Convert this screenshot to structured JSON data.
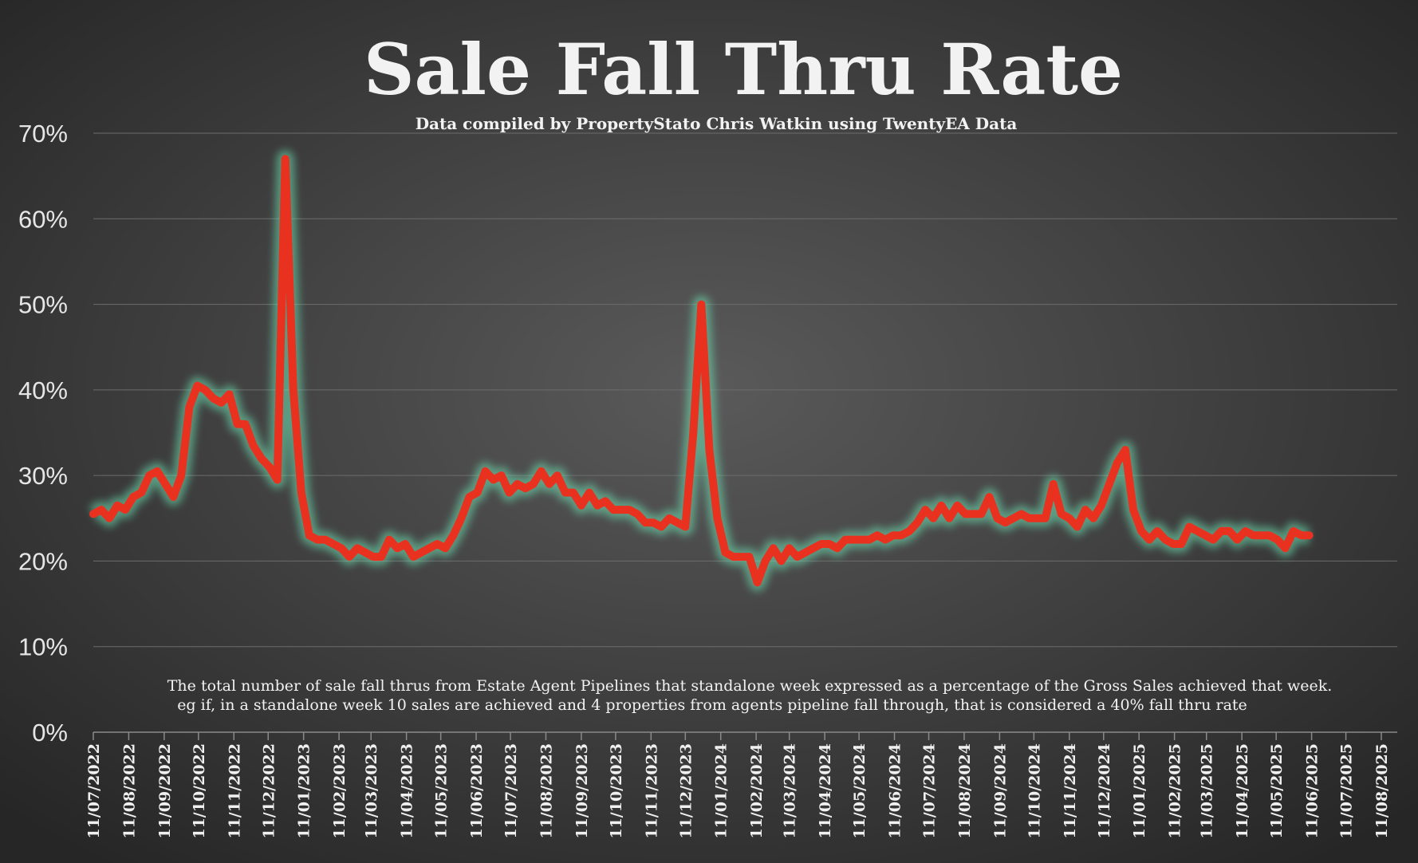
{
  "chart_data": {
    "type": "line",
    "title": "Sale Fall Thru Rate",
    "subtitle": "Data compiled by PropertyStato Chris Watkin using TwentyEA Data",
    "annotation": [
      "The total number of sale fall thrus from Estate Agent Pipelines that standalone week expressed as a percentage of the Gross Sales achieved that week.",
      "eg if, in a standalone week 10 sales are achieved and 4 properties from agents pipeline fall through, that is considered a 40%  fall thru rate"
    ],
    "x": [
      "2022-07-11",
      "2022-07-18",
      "2022-07-25",
      "2022-08-01",
      "2022-08-08",
      "2022-08-15",
      "2022-08-22",
      "2022-08-29",
      "2022-09-05",
      "2022-09-12",
      "2022-09-19",
      "2022-09-26",
      "2022-10-03",
      "2022-10-10",
      "2022-10-17",
      "2022-10-24",
      "2022-10-31",
      "2022-11-07",
      "2022-11-14",
      "2022-11-21",
      "2022-11-28",
      "2022-12-05",
      "2022-12-12",
      "2022-12-19",
      "2022-12-26",
      "2023-01-02",
      "2023-01-09",
      "2023-01-16",
      "2023-01-23",
      "2023-01-30",
      "2023-02-06",
      "2023-02-13",
      "2023-02-20",
      "2023-02-27",
      "2023-03-06",
      "2023-03-13",
      "2023-03-20",
      "2023-03-27",
      "2023-04-03",
      "2023-04-10",
      "2023-04-17",
      "2023-04-24",
      "2023-05-01",
      "2023-05-08",
      "2023-05-15",
      "2023-05-22",
      "2023-05-29",
      "2023-06-05",
      "2023-06-12",
      "2023-06-19",
      "2023-06-26",
      "2023-07-03",
      "2023-07-10",
      "2023-07-17",
      "2023-07-24",
      "2023-07-31",
      "2023-08-07",
      "2023-08-14",
      "2023-08-21",
      "2023-08-28",
      "2023-09-04",
      "2023-09-11",
      "2023-09-18",
      "2023-09-25",
      "2023-10-02",
      "2023-10-09",
      "2023-10-16",
      "2023-10-23",
      "2023-10-30",
      "2023-11-06",
      "2023-11-13",
      "2023-11-20",
      "2023-11-27",
      "2023-12-04",
      "2023-12-11",
      "2023-12-18",
      "2023-12-25",
      "2024-01-01",
      "2024-01-08",
      "2024-01-15",
      "2024-01-22",
      "2024-01-29",
      "2024-02-05",
      "2024-02-12",
      "2024-02-19",
      "2024-02-26",
      "2024-03-04",
      "2024-03-11",
      "2024-03-18",
      "2024-03-25",
      "2024-04-01",
      "2024-04-08",
      "2024-04-15",
      "2024-04-22",
      "2024-04-29",
      "2024-05-06",
      "2024-05-13",
      "2024-05-20",
      "2024-05-27",
      "2024-06-03",
      "2024-06-10",
      "2024-06-17",
      "2024-06-24",
      "2024-07-01",
      "2024-07-08",
      "2024-07-15",
      "2024-07-22",
      "2024-07-29",
      "2024-08-05",
      "2024-08-12",
      "2024-08-19",
      "2024-08-26",
      "2024-09-02",
      "2024-09-09",
      "2024-09-16",
      "2024-09-23",
      "2024-09-30",
      "2024-10-07",
      "2024-10-14",
      "2024-10-21",
      "2024-10-28",
      "2024-11-04",
      "2024-11-11",
      "2024-11-18",
      "2024-11-25",
      "2024-12-02",
      "2024-12-09",
      "2024-12-16",
      "2024-12-23",
      "2024-12-30",
      "2025-01-06",
      "2025-01-13",
      "2025-01-20",
      "2025-01-27",
      "2025-02-03",
      "2025-02-10",
      "2025-02-17",
      "2025-02-24",
      "2025-03-03",
      "2025-03-10",
      "2025-03-17",
      "2025-03-24",
      "2025-03-31",
      "2025-04-07",
      "2025-04-14",
      "2025-04-21",
      "2025-04-28",
      "2025-05-05",
      "2025-05-12",
      "2025-05-19",
      "2025-05-26",
      "2025-06-02",
      "2025-06-09"
    ],
    "series": [
      {
        "name": "Sale Fall Thru Rate",
        "color": "#e8321f",
        "values": [
          25.5,
          26,
          25,
          26.5,
          26,
          27.5,
          28,
          30,
          30.5,
          29,
          27.5,
          30,
          38,
          40.5,
          40,
          39,
          38.5,
          39.5,
          36,
          36,
          33.5,
          32,
          31,
          29.5,
          67,
          40,
          28,
          23,
          22.5,
          22.5,
          22,
          21.5,
          20.5,
          21.5,
          21,
          20.5,
          20.5,
          22.5,
          21.5,
          22,
          20.5,
          21,
          21.5,
          22,
          21.5,
          23,
          25,
          27.5,
          28,
          30.5,
          29.5,
          30,
          28,
          29,
          28.5,
          29,
          30.5,
          29,
          30,
          28,
          28,
          26.5,
          28,
          26.5,
          27,
          26,
          26,
          26,
          25.5,
          24.5,
          24.5,
          24,
          25,
          24.5,
          24,
          35,
          50,
          33,
          25,
          21,
          20.5,
          20.5,
          20.5,
          17.5,
          20,
          21.5,
          20,
          21.5,
          20.5,
          21,
          21.5,
          22,
          22,
          21.5,
          22.5,
          22.5,
          22.5,
          22.5,
          23,
          22.5,
          23,
          23,
          23.5,
          24.5,
          26,
          25,
          26.5,
          25,
          26.5,
          25.5,
          25.5,
          25.5,
          27.5,
          25,
          24.5,
          25,
          25.5,
          25,
          25,
          25,
          29,
          25.5,
          25,
          24,
          26,
          25,
          26.5,
          29,
          31.5,
          33,
          26,
          23.5,
          22.5,
          23.5,
          22.5,
          22,
          22,
          24,
          23.5,
          23,
          22.5,
          23.5,
          23.5,
          22.5,
          23.5,
          23,
          23,
          23,
          22.5,
          21.5,
          23.5,
          23,
          23
        ]
      }
    ],
    "xlim": [
      "2022-07-11",
      "2025-08-11"
    ],
    "xticks": [
      {
        "value": "2022-07-11",
        "label": "11/07/2022"
      },
      {
        "value": "2022-08-11",
        "label": "11/08/2022"
      },
      {
        "value": "2022-09-11",
        "label": "11/09/2022"
      },
      {
        "value": "2022-10-11",
        "label": "11/10/2022"
      },
      {
        "value": "2022-11-11",
        "label": "11/11/2022"
      },
      {
        "value": "2022-12-11",
        "label": "11/12/2022"
      },
      {
        "value": "2023-01-11",
        "label": "11/01/2023"
      },
      {
        "value": "2023-02-11",
        "label": "11/02/2023"
      },
      {
        "value": "2023-03-11",
        "label": "11/03/2023"
      },
      {
        "value": "2023-04-11",
        "label": "11/04/2023"
      },
      {
        "value": "2023-05-11",
        "label": "11/05/2023"
      },
      {
        "value": "2023-06-11",
        "label": "11/06/2023"
      },
      {
        "value": "2023-07-11",
        "label": "11/07/2023"
      },
      {
        "value": "2023-08-11",
        "label": "11/08/2023"
      },
      {
        "value": "2023-09-11",
        "label": "11/09/2023"
      },
      {
        "value": "2023-10-11",
        "label": "11/10/2023"
      },
      {
        "value": "2023-11-11",
        "label": "11/11/2023"
      },
      {
        "value": "2023-12-11",
        "label": "11/12/2023"
      },
      {
        "value": "2024-01-11",
        "label": "11/01/2024"
      },
      {
        "value": "2024-02-11",
        "label": "11/02/2024"
      },
      {
        "value": "2024-03-11",
        "label": "11/03/2024"
      },
      {
        "value": "2024-04-11",
        "label": "11/04/2024"
      },
      {
        "value": "2024-05-11",
        "label": "11/05/2024"
      },
      {
        "value": "2024-06-11",
        "label": "11/06/2024"
      },
      {
        "value": "2024-07-11",
        "label": "11/07/2024"
      },
      {
        "value": "2024-08-11",
        "label": "11/08/2024"
      },
      {
        "value": "2024-09-11",
        "label": "11/09/2024"
      },
      {
        "value": "2024-10-11",
        "label": "11/10/2024"
      },
      {
        "value": "2024-11-11",
        "label": "11/11/2024"
      },
      {
        "value": "2024-12-11",
        "label": "11/12/2024"
      },
      {
        "value": "2025-01-11",
        "label": "11/01/2025"
      },
      {
        "value": "2025-02-11",
        "label": "11/02/2025"
      },
      {
        "value": "2025-03-11",
        "label": "11/03/2025"
      },
      {
        "value": "2025-04-11",
        "label": "11/04/2025"
      },
      {
        "value": "2025-05-11",
        "label": "11/05/2025"
      },
      {
        "value": "2025-06-11",
        "label": "11/06/2025"
      },
      {
        "value": "2025-07-11",
        "label": "11/07/2025"
      },
      {
        "value": "2025-08-11",
        "label": "11/08/2025"
      }
    ],
    "ylim": [
      0,
      70
    ],
    "yticks": [
      {
        "value": 0,
        "label": "0%"
      },
      {
        "value": 10,
        "label": "10%"
      },
      {
        "value": 20,
        "label": "20%"
      },
      {
        "value": 30,
        "label": "30%"
      },
      {
        "value": 40,
        "label": "40%"
      },
      {
        "value": 50,
        "label": "50%"
      },
      {
        "value": 60,
        "label": "60%"
      },
      {
        "value": 70,
        "label": "70%"
      }
    ],
    "grid": true
  }
}
